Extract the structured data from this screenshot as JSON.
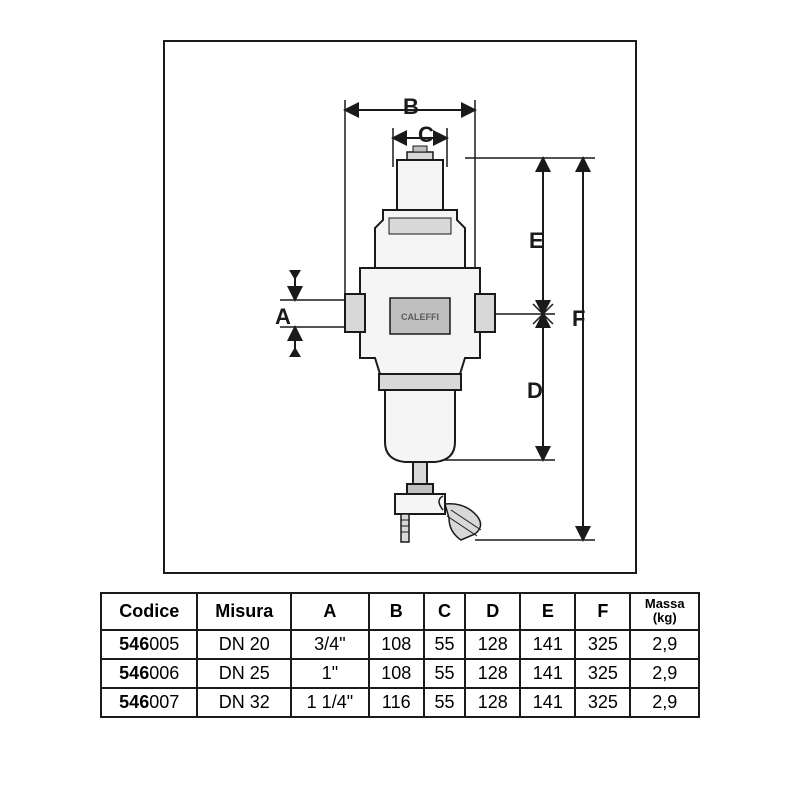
{
  "diagram": {
    "labels": {
      "A": "A",
      "B": "B",
      "C": "C",
      "D": "D",
      "E": "E",
      "F": "F"
    },
    "brand": "CALEFFI",
    "stroke": "#1a1a1a",
    "component_fill": "#f5f5f5",
    "component_shade": "#d8d8d8",
    "component_dark": "#bfbfbf"
  },
  "table": {
    "headers": [
      "Codice",
      "Misura",
      "A",
      "B",
      "C",
      "D",
      "E",
      "F"
    ],
    "massa_header_line1": "Massa",
    "massa_header_line2": "(kg)",
    "rows": [
      {
        "code_bold": "546",
        "code_rest": "005",
        "misura": "DN 20",
        "A": "3/4\"",
        "B": "108",
        "C": "55",
        "D": "128",
        "E": "141",
        "F": "325",
        "massa": "2,9"
      },
      {
        "code_bold": "546",
        "code_rest": "006",
        "misura": "DN 25",
        "A": "1\"",
        "B": "108",
        "C": "55",
        "D": "128",
        "E": "141",
        "F": "325",
        "massa": "2,9"
      },
      {
        "code_bold": "546",
        "code_rest": "007",
        "misura": "DN 32",
        "A": "1 1/4\"",
        "B": "116",
        "C": "55",
        "D": "128",
        "E": "141",
        "F": "325",
        "massa": "2,9"
      }
    ]
  }
}
